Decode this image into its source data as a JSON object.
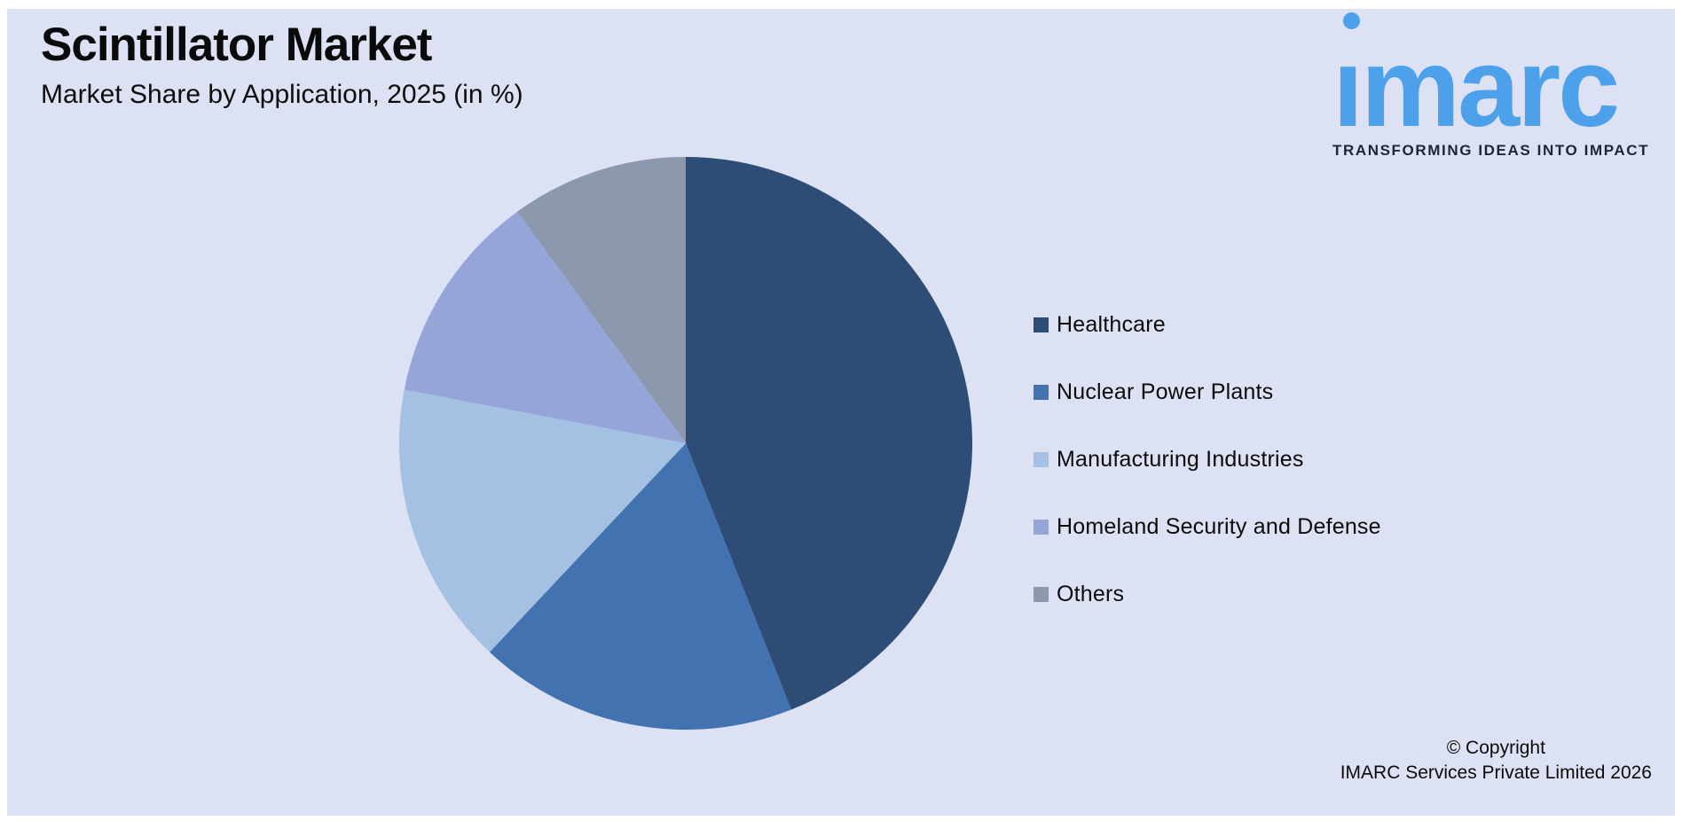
{
  "header": {
    "title": "Scintillator Market",
    "subtitle": "Market Share by Application, 2025 (in %)"
  },
  "logo": {
    "wordmark": "imarc",
    "tagline": "TRANSFORMING IDEAS INTO IMPACT",
    "blue": "#4da0ea",
    "tagline_color": "#1c2734"
  },
  "chart_data": {
    "type": "pie",
    "title": "Market Share by Application, 2025 (in %)",
    "categories": [
      "Healthcare",
      "Nuclear Power Plants",
      "Manufacturing Industries",
      "Homeland Security and Defense",
      "Others"
    ],
    "values": [
      44,
      18,
      16,
      12,
      10
    ],
    "unit": "%",
    "colors": [
      "#2e4d76",
      "#4272af",
      "#a4c0e2",
      "#95a5d8",
      "#8b98ad"
    ],
    "start_angle_deg": 0,
    "direction": "clockwise",
    "legend_position": "right",
    "data_labels": false
  },
  "footer": {
    "copyright_line1": "© Copyright",
    "copyright_line2": "IMARC Services Private Limited 2026"
  },
  "colors": {
    "page_background": "#ffffff",
    "panel_background": "#dce2f3",
    "text": "#0b0b0b"
  }
}
